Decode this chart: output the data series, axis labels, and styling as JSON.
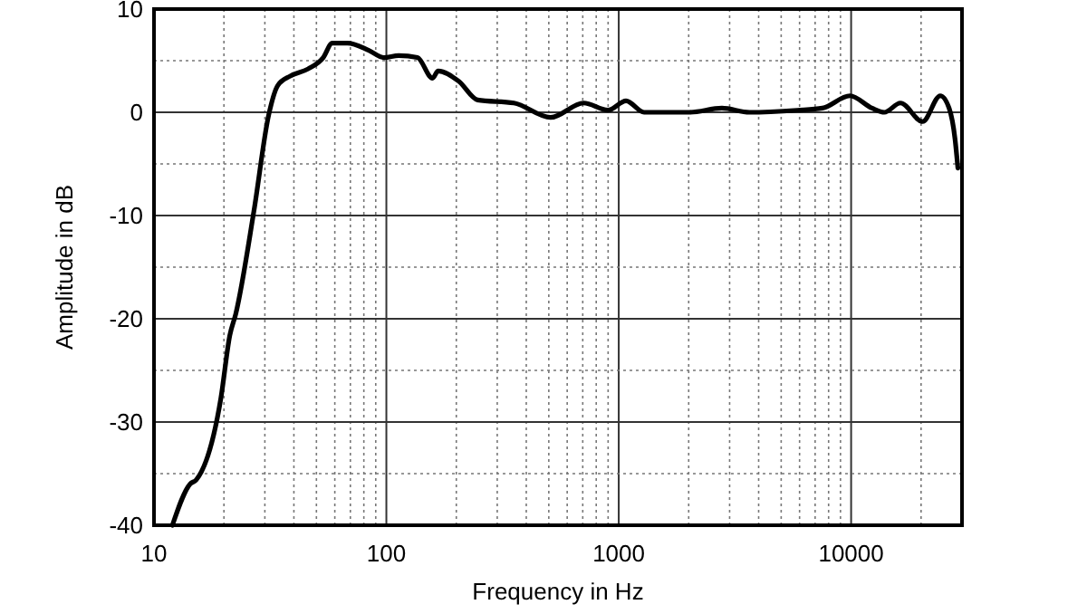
{
  "chart_data": {
    "type": "line",
    "xlabel": "Frequency  in Hz",
    "ylabel": "Amplitude in dB",
    "log": "x",
    "grid": true,
    "marker": "none",
    "line_style": "solid",
    "xlim": [
      10,
      30000
    ],
    "ylim": [
      -40,
      10
    ],
    "xticks": [
      10,
      {
        "value": 20,
        "label": null
      },
      {
        "value": 30,
        "label": null
      },
      {
        "value": 40,
        "label": null
      },
      {
        "value": 50,
        "label": null
      },
      {
        "value": 60,
        "label": null
      },
      {
        "value": 70,
        "label": null
      },
      {
        "value": 80,
        "label": null
      },
      {
        "value": 90,
        "label": null
      },
      100,
      {
        "value": 200,
        "label": null
      },
      {
        "value": 300,
        "label": null
      },
      {
        "value": 400,
        "label": null
      },
      {
        "value": 500,
        "label": null
      },
      {
        "value": 600,
        "label": null
      },
      {
        "value": 700,
        "label": null
      },
      {
        "value": 800,
        "label": null
      },
      {
        "value": 900,
        "label": null
      },
      1000,
      {
        "value": 2000,
        "label": null
      },
      {
        "value": 3000,
        "label": null
      },
      {
        "value": 4000,
        "label": null
      },
      {
        "value": 5000,
        "label": null
      },
      {
        "value": 6000,
        "label": null
      },
      {
        "value": 7000,
        "label": null
      },
      {
        "value": 8000,
        "label": null
      },
      {
        "value": 9000,
        "label": null
      },
      10000,
      {
        "value": 20000,
        "label": null
      }
    ],
    "yticks": [
      -40,
      {
        "value": -35,
        "label": null
      },
      -30,
      {
        "value": -25,
        "label": null
      },
      -20,
      {
        "value": -15,
        "label": null
      },
      -10,
      {
        "value": -5,
        "label": null
      },
      0,
      {
        "value": 5,
        "label": null
      },
      10
    ],
    "series": [
      {
        "color": "#000000",
        "x": [
          12,
          14.3,
          15.2,
          19.4,
          21.2,
          22.5,
          26.9,
          31.2,
          34.1,
          38.5,
          46,
          53.5,
          58.5,
          68,
          84,
          97.6,
          113,
          136,
          158,
          167,
          205,
          247,
          354,
          509,
          706,
          898,
          1075,
          1285,
          2010,
          2780,
          3650,
          5870,
          7520,
          9880,
          12300,
          13900,
          16300,
          20300,
          24200,
          26400,
          28000,
          28800
        ],
        "values": [
          -40,
          -36,
          -35.6,
          -27.7,
          -21.6,
          -19.5,
          -9.6,
          -0.2,
          2.6,
          3.5,
          4.2,
          5.3,
          6.7,
          6.7,
          6,
          5.3,
          5.5,
          5.3,
          3.3,
          4,
          3,
          1.2,
          0.9,
          -0.5,
          0.9,
          0.2,
          1.1,
          0,
          0,
          0.4,
          0,
          0.2,
          0.4,
          1.6,
          0.4,
          0,
          0.9,
          -0.9,
          1.6,
          0.4,
          -2.6,
          -5.4
        ]
      }
    ]
  }
}
